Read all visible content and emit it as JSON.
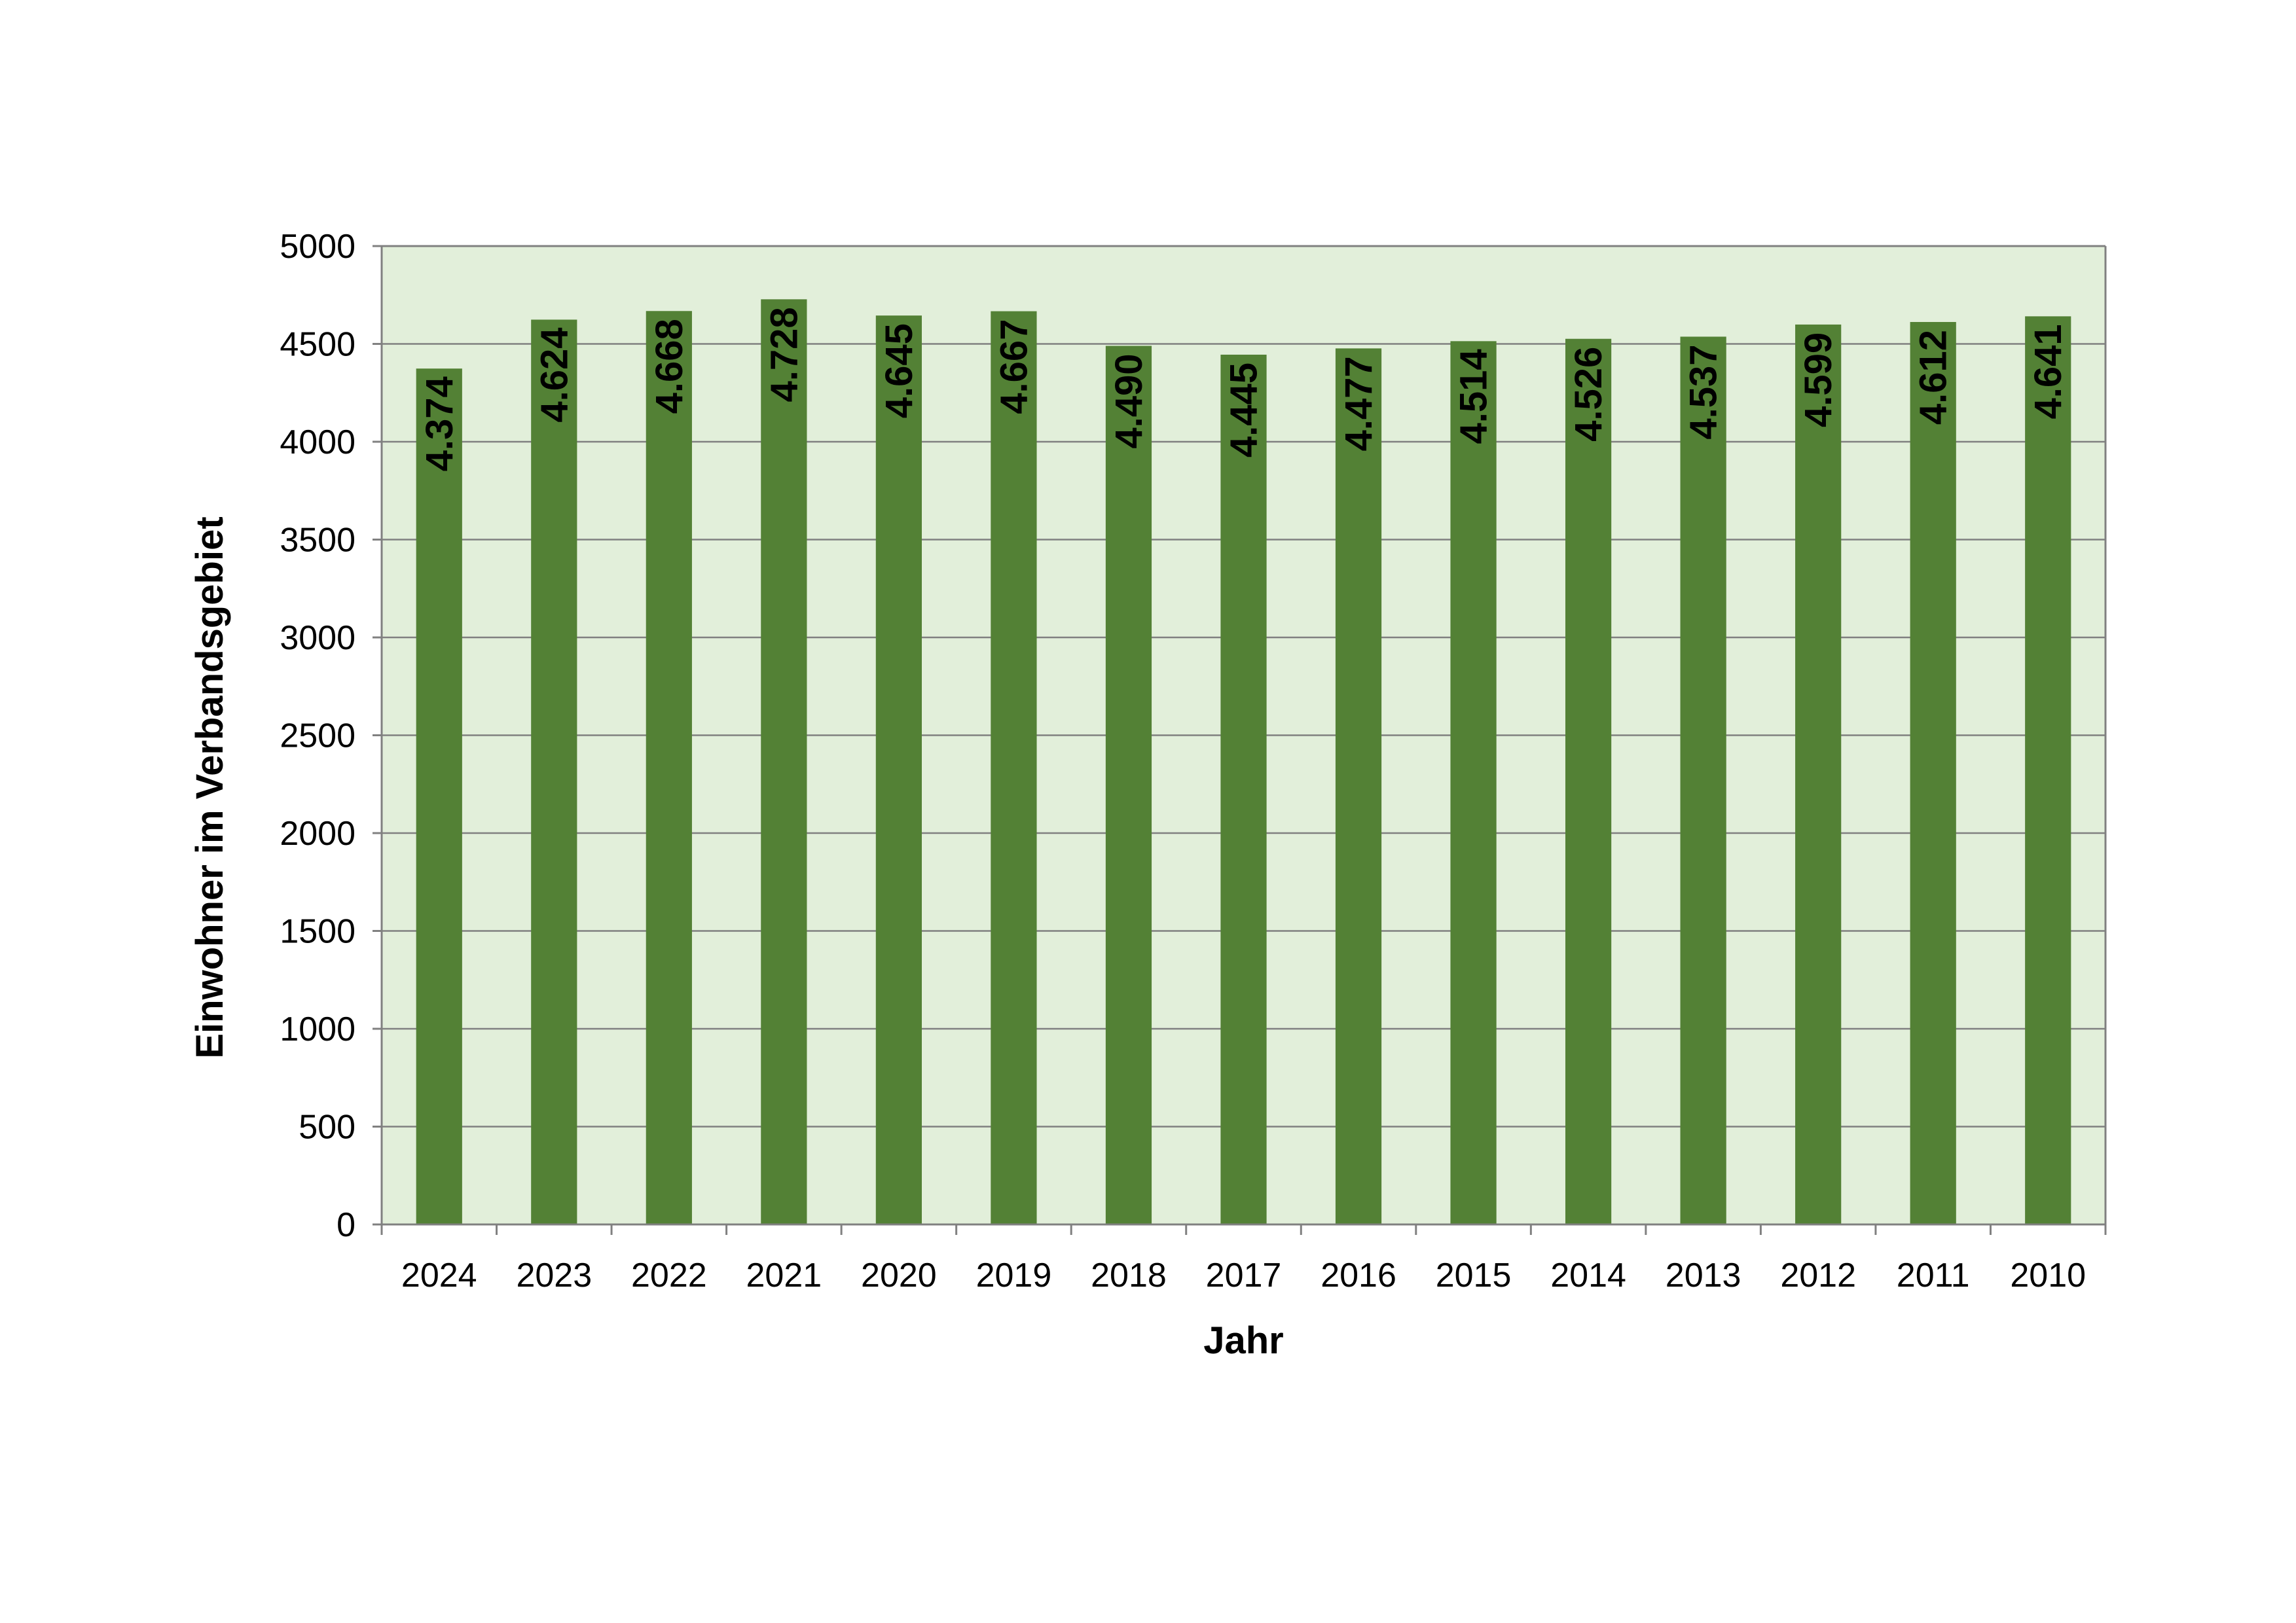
{
  "chart_data": {
    "type": "bar",
    "categories": [
      "2024",
      "2023",
      "2022",
      "2021",
      "2020",
      "2019",
      "2018",
      "2017",
      "2016",
      "2015",
      "2014",
      "2013",
      "2012",
      "2011",
      "2010"
    ],
    "values": [
      4374,
      4624,
      4668,
      4728,
      4645,
      4667,
      4490,
      4445,
      4477,
      4514,
      4526,
      4537,
      4599,
      4612,
      4641
    ],
    "data_labels": [
      "4.374",
      "4.624",
      "4.668",
      "4.728",
      "4.645",
      "4.667",
      "4.490",
      "4.445",
      "4.477",
      "4.514",
      "4.526",
      "4.537",
      "4.599",
      "4.612",
      "4.641"
    ],
    "xlabel": "Jahr",
    "ylabel": "Einwohner im Verbandsgebiet",
    "ylim": [
      0,
      5000
    ],
    "yticks": [
      0,
      500,
      1000,
      1500,
      2000,
      2500,
      3000,
      3500,
      4000,
      4500,
      5000
    ],
    "grid": true,
    "legend": "none",
    "colors": {
      "bar": "#538135",
      "plot_background": "#e2efda",
      "gridline": "#808080",
      "axis": "#808080"
    }
  }
}
